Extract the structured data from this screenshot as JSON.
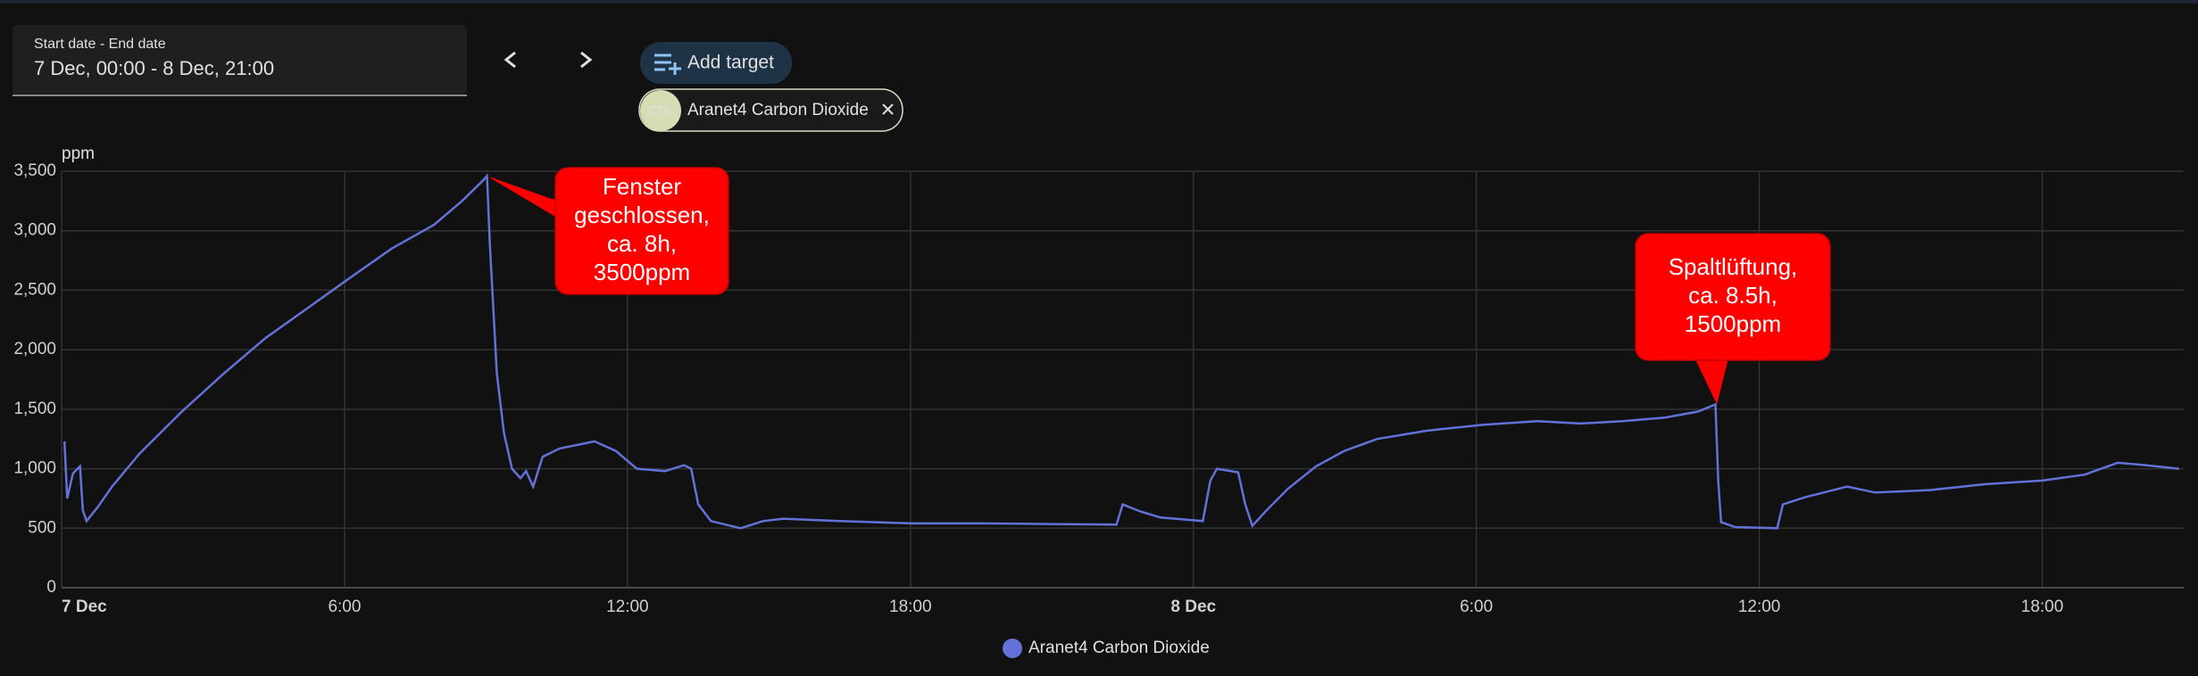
{
  "toolbar": {
    "date_label": "Start date - End date",
    "date_value": "7 Dec, 00:00 - 8 Dec, 21:00",
    "add_target": "Add target",
    "target_chip": {
      "icon": "CO₂",
      "label": "Aranet4 Carbon Dioxide"
    }
  },
  "chart_data": {
    "type": "line",
    "ylabel": "ppm",
    "x": [
      0.06,
      0.12,
      0.24,
      0.39,
      0.45,
      0.53,
      0.77,
      1.07,
      1.66,
      2.55,
      3.44,
      4.33,
      5.22,
      6.1,
      7.0,
      7.9,
      8.49,
      8.93,
      9.02,
      9.08,
      9.23,
      9.38,
      9.55,
      9.73,
      9.85,
      10.0,
      10.2,
      10.56,
      11.3,
      11.75,
      12.2,
      12.8,
      13.2,
      13.35,
      13.5,
      13.77,
      14.4,
      14.87,
      15.3,
      16.5,
      18.0,
      19.5,
      20.95,
      22.37,
      22.5,
      22.88,
      23.3,
      24.2,
      24.36,
      24.5,
      24.95,
      25.1,
      25.25,
      25.55,
      26.0,
      26.6,
      27.2,
      27.9,
      28.96,
      30.15,
      31.3,
      32.2,
      33.1,
      34.0,
      34.7,
      35.07,
      35.13,
      35.19,
      35.49,
      36.38,
      36.5,
      36.97,
      37.86,
      38.46,
      39.6,
      40.8,
      42.0,
      42.9,
      43.6,
      44.2,
      44.9
    ],
    "series": [
      {
        "name": "Aranet4 Carbon Dioxide",
        "color": "#6272d8",
        "values": [
          1230,
          750,
          960,
          1020,
          650,
          560,
          680,
          850,
          1130,
          1480,
          1800,
          2100,
          2350,
          2600,
          2850,
          3050,
          3250,
          3420,
          3460,
          2900,
          1800,
          1300,
          1000,
          920,
          980,
          850,
          1100,
          1170,
          1230,
          1150,
          1000,
          980,
          1030,
          1000,
          700,
          560,
          500,
          560,
          580,
          560,
          540,
          540,
          535,
          530,
          700,
          640,
          590,
          560,
          900,
          1000,
          970,
          700,
          520,
          650,
          830,
          1020,
          1150,
          1250,
          1320,
          1370,
          1400,
          1380,
          1400,
          1430,
          1480,
          1540,
          900,
          550,
          510,
          500,
          700,
          760,
          850,
          800,
          820,
          870,
          900,
          950,
          1050,
          1030,
          1000
        ]
      }
    ],
    "xlim": [
      0,
      45
    ],
    "xticks": [
      {
        "value": 0,
        "label": "7 Dec"
      },
      {
        "value": 6,
        "label": "6:00"
      },
      {
        "value": 12,
        "label": "12:00"
      },
      {
        "value": 18,
        "label": "18:00"
      },
      {
        "value": 24,
        "label": "8 Dec"
      },
      {
        "value": 30,
        "label": "6:00"
      },
      {
        "value": 36,
        "label": "12:00"
      },
      {
        "value": 42,
        "label": "18:00"
      }
    ],
    "ylim": [
      0,
      3500
    ],
    "yticks": [
      0,
      500,
      {
        "value": 1000,
        "label": "1,000"
      },
      {
        "value": 1500,
        "label": "1,500"
      },
      {
        "value": 2000,
        "label": "2,000"
      },
      {
        "value": 2500,
        "label": "2,500"
      },
      {
        "value": 3000,
        "label": "3,000"
      },
      {
        "value": 3500,
        "label": "3,500"
      }
    ],
    "grid": true,
    "annotations": [
      {
        "lines": [
          "Fenster",
          "geschlossen,",
          "ca. 8h,",
          "3500ppm"
        ]
      },
      {
        "lines": [
          "Spaltlüftung,",
          "ca. 8.5h,",
          "1500ppm"
        ]
      }
    ]
  }
}
